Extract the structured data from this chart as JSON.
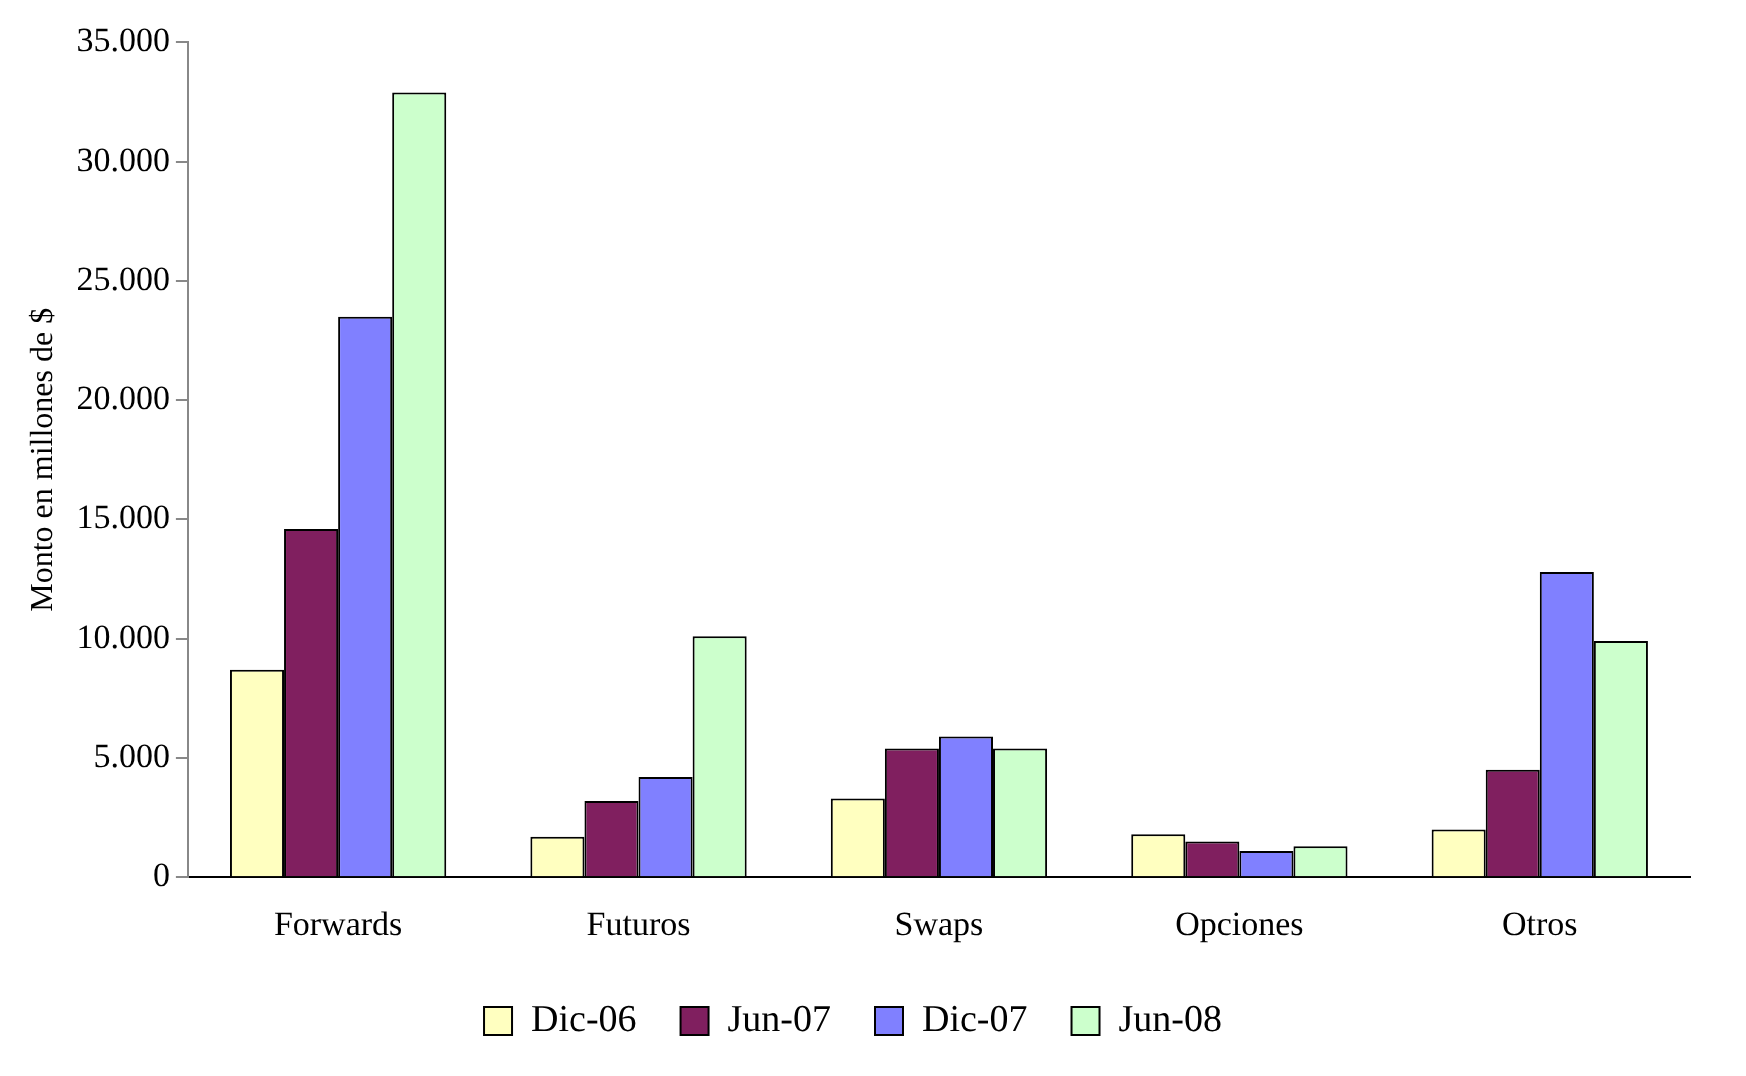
{
  "chart_data": {
    "type": "bar",
    "ylabel": "Monto en millones de $",
    "categories": [
      "Forwards",
      "Futuros",
      "Swaps",
      "Opciones",
      "Otros"
    ],
    "series": [
      {
        "name": "Dic-06",
        "color": "#ffffc0",
        "values": [
          8700,
          1700,
          3300,
          1800,
          2000
        ]
      },
      {
        "name": "Jun-07",
        "color": "#801f5f",
        "values": [
          14600,
          3200,
          5400,
          1500,
          4500
        ]
      },
      {
        "name": "Dic-07",
        "color": "#8080ff",
        "values": [
          23500,
          4200,
          5900,
          1100,
          12800
        ]
      },
      {
        "name": "Jun-08",
        "color": "#ccffcc",
        "values": [
          32900,
          10100,
          5400,
          1300,
          9900
        ]
      }
    ],
    "ylim": [
      0,
      35000
    ],
    "yticks": [
      {
        "value": 0,
        "label": "0"
      },
      {
        "value": 5000,
        "label": "5.000"
      },
      {
        "value": 10000,
        "label": "10.000"
      },
      {
        "value": 15000,
        "label": "15.000"
      },
      {
        "value": 20000,
        "label": "20.000"
      },
      {
        "value": 25000,
        "label": "25.000"
      },
      {
        "value": 30000,
        "label": "30.000"
      },
      {
        "value": 35000,
        "label": "35.000"
      }
    ],
    "grid": false,
    "legend": "bottom"
  }
}
